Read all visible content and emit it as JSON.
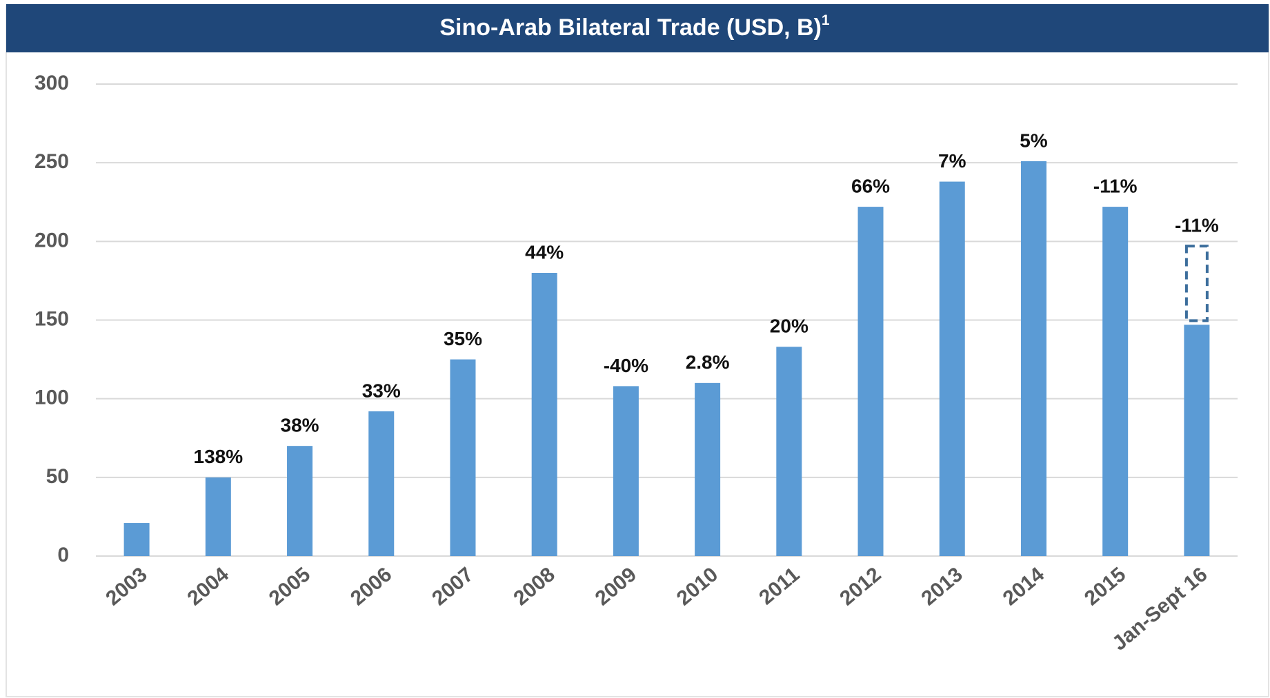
{
  "chart_data": {
    "type": "bar",
    "title": "Sino-Arab Bilateral Trade (USD, B)",
    "title_footnote": "1",
    "categories": [
      "2003",
      "2004",
      "2005",
      "2006",
      "2007",
      "2008",
      "2009",
      "2010",
      "2011",
      "2012",
      "2013",
      "2014",
      "2015",
      "Jan-Sept 16"
    ],
    "values": [
      21,
      50,
      70,
      92,
      125,
      180,
      108,
      110,
      133,
      222,
      238,
      251,
      222,
      147
    ],
    "growth_labels": [
      null,
      "138%",
      "38%",
      "33%",
      "35%",
      "44%",
      "-40%",
      "2.8%",
      "20%",
      "66%",
      "7%",
      "5%",
      "-11%",
      "-11%"
    ],
    "projection": {
      "category_index": 13,
      "value": 197
    },
    "color": "#5b9bd5",
    "ylim": [
      0,
      300
    ],
    "yticks": [
      0,
      50,
      100,
      150,
      200,
      250,
      300
    ],
    "grid": true
  }
}
